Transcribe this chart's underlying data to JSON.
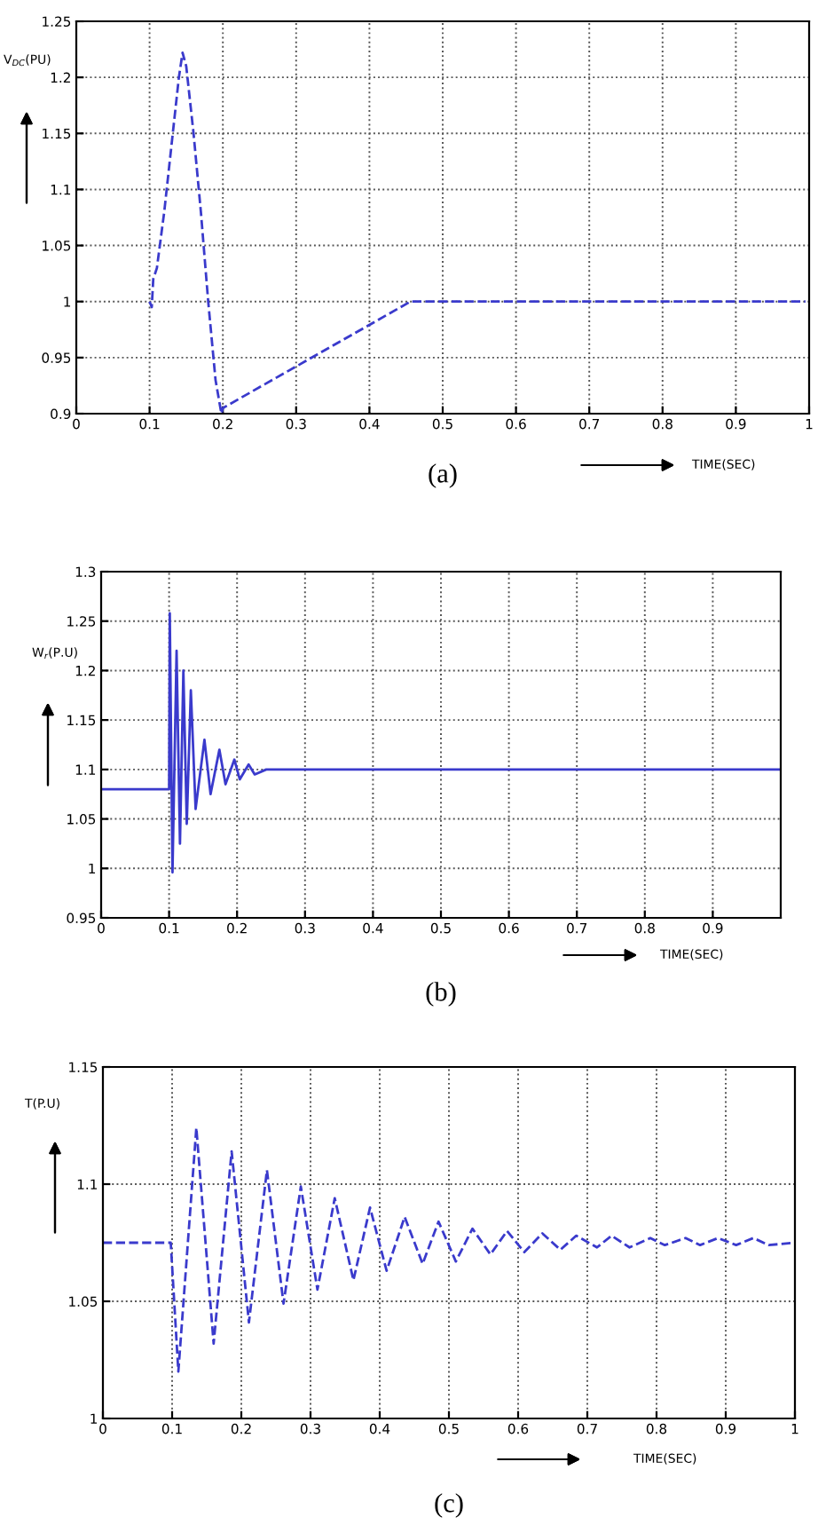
{
  "chart_data": [
    {
      "type": "line",
      "xlabel": "TIME(SEC)",
      "ylabel": "V$_{DC}$(PU)",
      "annotations": [
        "(a)"
      ],
      "grid": true,
      "line_style": "dashed",
      "marker": "none",
      "xlim": [
        0,
        1
      ],
      "ylim": [
        0.9,
        1.25
      ],
      "xticks": [
        0,
        0.1,
        0.2,
        0.3,
        0.4,
        0.5,
        0.6,
        0.7,
        0.8,
        0.9,
        1
      ],
      "yticks": [
        0.9,
        0.95,
        1,
        1.05,
        1.1,
        1.15,
        1.2,
        1.25
      ],
      "series": [
        {
          "color": "#3a3acc",
          "x": [
            0.1,
            0.103,
            0.105,
            0.11,
            0.12,
            0.13,
            0.14,
            0.145,
            0.15,
            0.16,
            0.17,
            0.18,
            0.19,
            0.198,
            0.2,
            0.456,
            0.995
          ],
          "values": [
            1.0,
            0.995,
            1.02,
            1.03,
            1.08,
            1.14,
            1.2,
            1.222,
            1.21,
            1.15,
            1.08,
            1.0,
            0.93,
            0.9,
            0.905,
            1.0,
            1.0
          ]
        }
      ]
    },
    {
      "type": "line",
      "xlabel": "TIME(SEC)",
      "ylabel": "W$_{r}$(P.U)",
      "annotations": [
        "(b)"
      ],
      "grid": true,
      "line_style": "solid",
      "marker": "none",
      "xlim": [
        0,
        1
      ],
      "ylim": [
        0.95,
        1.3
      ],
      "xticks": [
        0,
        0.1,
        0.2,
        0.3,
        0.4,
        0.5,
        0.6,
        0.7,
        0.8,
        0.9
      ],
      "yticks": [
        0.95,
        1,
        1.05,
        1.1,
        1.15,
        1.2,
        1.25,
        1.3
      ],
      "series": [
        {
          "color": "#3a3acc",
          "x": [
            0,
            0.1,
            0.101,
            0.105,
            0.111,
            0.116,
            0.121,
            0.126,
            0.132,
            0.139,
            0.152,
            0.161,
            0.174,
            0.183,
            0.196,
            0.204,
            0.217,
            0.226,
            0.243,
            0.313,
            1.0
          ],
          "values": [
            1.08,
            1.08,
            1.258,
            0.996,
            1.22,
            1.025,
            1.2,
            1.045,
            1.18,
            1.06,
            1.13,
            1.075,
            1.12,
            1.085,
            1.11,
            1.09,
            1.105,
            1.095,
            1.1,
            1.1,
            1.1
          ]
        }
      ]
    },
    {
      "type": "line",
      "xlabel": "TIME(SEC)",
      "ylabel": "T(P.U)",
      "annotations": [
        "(c)"
      ],
      "grid": true,
      "line_style": "dashed",
      "marker": "none",
      "xlim": [
        0,
        1
      ],
      "ylim": [
        1,
        1.15
      ],
      "xticks": [
        0,
        0.1,
        0.2,
        0.3,
        0.4,
        0.5,
        0.6,
        0.7,
        0.8,
        0.9,
        1
      ],
      "yticks": [
        1,
        1.05,
        1.1,
        1.15
      ],
      "series": [
        {
          "color": "#3a3acc",
          "x": [
            0,
            0.098,
            0.109,
            0.135,
            0.16,
            0.186,
            0.211,
            0.237,
            0.261,
            0.286,
            0.31,
            0.335,
            0.362,
            0.386,
            0.41,
            0.436,
            0.462,
            0.485,
            0.51,
            0.534,
            0.56,
            0.584,
            0.609,
            0.635,
            0.661,
            0.684,
            0.714,
            0.735,
            0.761,
            0.791,
            0.812,
            0.842,
            0.863,
            0.889,
            0.915,
            0.94,
            0.962,
            1.0
          ],
          "values": [
            1.075,
            1.075,
            1.02,
            1.124,
            1.032,
            1.114,
            1.041,
            1.106,
            1.049,
            1.099,
            1.055,
            1.094,
            1.059,
            1.09,
            1.063,
            1.086,
            1.066,
            1.084,
            1.067,
            1.081,
            1.07,
            1.08,
            1.071,
            1.079,
            1.072,
            1.078,
            1.073,
            1.078,
            1.073,
            1.077,
            1.074,
            1.077,
            1.074,
            1.077,
            1.074,
            1.077,
            1.074,
            1.075
          ]
        }
      ]
    }
  ]
}
